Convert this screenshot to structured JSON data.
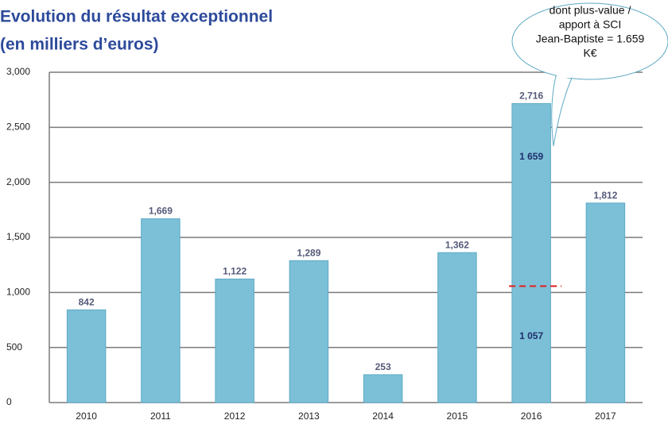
{
  "chart_data": {
    "type": "bar",
    "title": [
      "Evolution du résultat exceptionnel",
      "(en milliers d’euros)"
    ],
    "categories": [
      "2010",
      "2011",
      "2012",
      "2013",
      "2014",
      "2015",
      "2016",
      "2017"
    ],
    "values": [
      842,
      1669,
      1122,
      1289,
      253,
      1362,
      2716,
      1812
    ],
    "value_labels": [
      "842",
      "1,669",
      "1,122",
      "1,289",
      "253",
      "1,362",
      "2,716",
      "1,812"
    ],
    "color": "#7cc0d8",
    "ylim": [
      0,
      3000
    ],
    "yticks": [
      0,
      500,
      {
        "value": 1000,
        "label": "1,000"
      },
      {
        "value": 1500,
        "label": "1,500"
      },
      {
        "value": 2000,
        "label": "2,000"
      },
      {
        "value": 2500,
        "label": "2,500"
      },
      {
        "value": 3000,
        "label": "3,000"
      }
    ],
    "grid": true,
    "annotations": [
      {
        "label": "1 659",
        "value": 1659
      },
      {
        "label": "1 057",
        "value": 1057
      }
    ],
    "callout": [
      "dont plus-value /",
      "apport à SCI",
      "Jean-Baptiste = 1.659",
      "K€"
    ]
  }
}
